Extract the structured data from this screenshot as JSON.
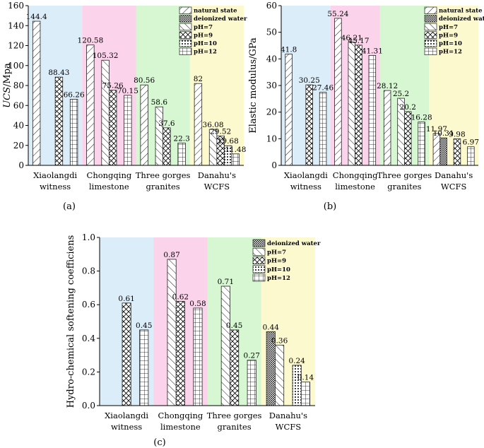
{
  "chart_data": [
    {
      "id": "a",
      "type": "bar",
      "panel_label": "(a)",
      "ylabel_italic": "UCS",
      "ylabel_rest": "/Mpa",
      "ylim": [
        0,
        160
      ],
      "yticks": [
        0,
        20,
        40,
        60,
        80,
        100,
        120,
        140,
        160
      ],
      "groups": [
        {
          "line1": "Xiaolangdi",
          "line2": "witness",
          "color": "#dcedfa"
        },
        {
          "line1": "Chongqing",
          "line2": "limestone",
          "color": "#fbd3ea"
        },
        {
          "line1": "Three gorges",
          "line2": "granites",
          "color": "#d6f7d2"
        },
        {
          "line1": "Danahu's",
          "line2": "WCFS",
          "color": "#fcf9cf"
        }
      ],
      "legend": [
        "natural state",
        "deionized water",
        "pH=7",
        "pH=9",
        "pH=10",
        "pH=12"
      ],
      "series": [
        {
          "name": "natural state",
          "values": [
            144.4,
            120.58,
            80.56,
            82
          ]
        },
        {
          "name": "deionized water",
          "values": [
            null,
            null,
            null,
            null
          ]
        },
        {
          "name": "pH=7",
          "values": [
            null,
            105.32,
            58.6,
            36.08
          ]
        },
        {
          "name": "pH=9",
          "values": [
            88.43,
            75.26,
            37.6,
            29.52
          ]
        },
        {
          "name": "pH=10",
          "values": [
            null,
            null,
            null,
            19.68
          ]
        },
        {
          "name": "pH=12",
          "values": [
            66.26,
            70.15,
            22.3,
            11.48
          ]
        }
      ]
    },
    {
      "id": "b",
      "type": "bar",
      "panel_label": "(b)",
      "ylabel_italic": "",
      "ylabel_rest": "Elastic modulus/GPa",
      "ylim": [
        0,
        60
      ],
      "yticks": [
        0,
        10,
        20,
        30,
        40,
        50,
        60
      ],
      "groups": [
        {
          "line1": "Xiaolangdi",
          "line2": "witness",
          "color": "#dcedfa"
        },
        {
          "line1": "Chongqing",
          "line2": "limestone",
          "color": "#fbd3ea"
        },
        {
          "line1": "Three gorges",
          "line2": "granites",
          "color": "#d6f7d2"
        },
        {
          "line1": "Danahu's",
          "line2": "WCFS",
          "color": "#fcf9cf"
        }
      ],
      "legend": [
        "natural state",
        "deionized water",
        "pH=7",
        "pH=9",
        "pH=10",
        "pH=12"
      ],
      "series": [
        {
          "name": "natural state",
          "values": [
            41.8,
            55.24,
            28.12,
            11.97
          ]
        },
        {
          "name": "deionized water",
          "values": [
            null,
            null,
            null,
            10.31
          ]
        },
        {
          "name": "pH=7",
          "values": [
            null,
            46.21,
            25.2,
            null
          ]
        },
        {
          "name": "pH=9",
          "values": [
            30.25,
            45.17,
            20.2,
            9.98
          ]
        },
        {
          "name": "pH=10",
          "values": [
            null,
            null,
            null,
            null
          ]
        },
        {
          "name": "pH=12",
          "values": [
            27.46,
            41.31,
            16.28,
            6.97
          ]
        }
      ]
    },
    {
      "id": "c",
      "type": "bar",
      "panel_label": "(c)",
      "ylabel_italic": "",
      "ylabel_rest": "Hydro-chemical softening coefficiens",
      "ylim": [
        0,
        1.0
      ],
      "yticks": [
        0.0,
        0.2,
        0.4,
        0.6,
        0.8,
        1.0
      ],
      "groups": [
        {
          "line1": "Xiaolangdi",
          "line2": "witness",
          "color": "#dcedfa"
        },
        {
          "line1": "Chongqing",
          "line2": "limestone",
          "color": "#fbd3ea"
        },
        {
          "line1": "Three gorges",
          "line2": "granites",
          "color": "#d6f7d2"
        },
        {
          "line1": "Danahu's",
          "line2": "WCFS",
          "color": "#fcf9cf"
        }
      ],
      "legend": [
        "deionized water",
        "pH=7",
        "pH=9",
        "pH=10",
        "pH=12"
      ],
      "series": [
        {
          "name": "deionized water",
          "values": [
            null,
            null,
            null,
            0.44
          ]
        },
        {
          "name": "pH=7",
          "values": [
            null,
            0.87,
            0.71,
            0.36
          ]
        },
        {
          "name": "pH=9",
          "values": [
            0.61,
            0.62,
            0.45,
            null
          ]
        },
        {
          "name": "pH=10",
          "values": [
            null,
            null,
            null,
            0.24
          ]
        },
        {
          "name": "pH=12",
          "values": [
            0.45,
            0.58,
            0.27,
            0.14
          ]
        }
      ]
    }
  ]
}
